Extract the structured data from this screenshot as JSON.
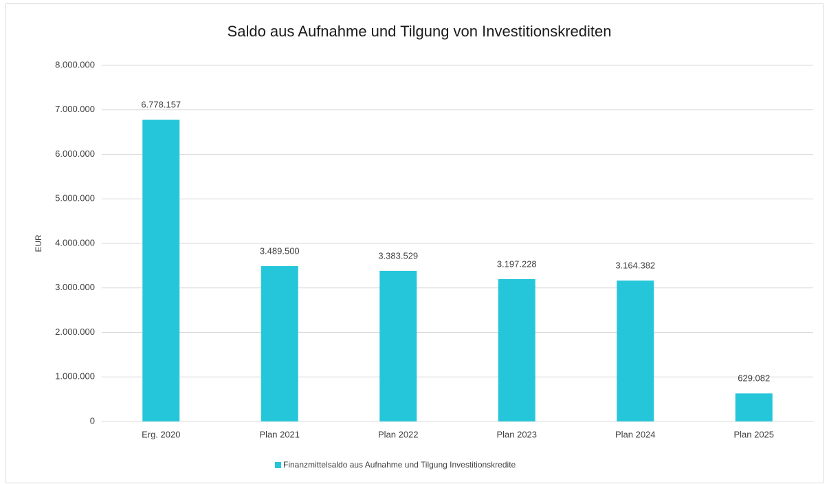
{
  "chart_data": {
    "type": "bar",
    "title": "Saldo aus Aufnahme und Tilgung von Investitionskrediten",
    "y_label": "EUR",
    "categories": [
      "Erg. 2020",
      "Plan 2021",
      "Plan 2022",
      "Plan 2023",
      "Plan 2024",
      "Plan 2025"
    ],
    "series": [
      {
        "name": "Finanzmittelsaldo aus Aufnahme und Tilgung Investitionskredite",
        "color": "#26c6da",
        "values": [
          6778157,
          3489500,
          3383529,
          3197228,
          3164382,
          629082
        ],
        "value_labels": [
          "6.778.157",
          "3.489.500",
          "3.383.529",
          "3.197.228",
          "3.164.382",
          "629.082"
        ]
      }
    ],
    "ylim": [
      0,
      8000000
    ],
    "yticks": [
      0,
      {
        "value": 1000000,
        "label": "1.000.000"
      },
      {
        "value": 2000000,
        "label": "2.000.000"
      },
      {
        "value": 3000000,
        "label": "3.000.000"
      },
      {
        "value": 4000000,
        "label": "4.000.000"
      },
      {
        "value": 5000000,
        "label": "5.000.000"
      },
      {
        "value": 6000000,
        "label": "6.000.000"
      },
      {
        "value": 7000000,
        "label": "7.000.000"
      },
      {
        "value": 8000000,
        "label": "8.000.000"
      }
    ],
    "grid": true,
    "legend": "bottom"
  }
}
